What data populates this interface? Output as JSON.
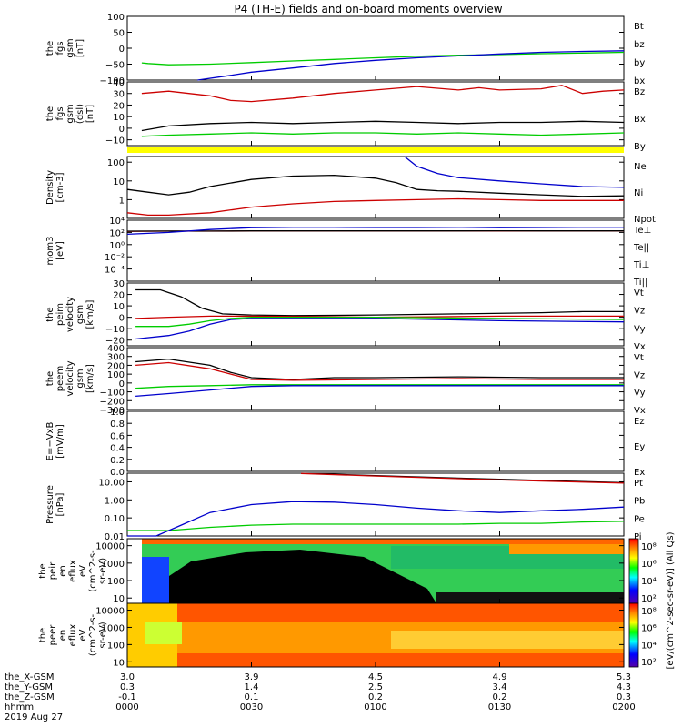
{
  "title": "P4 (TH-E) fields and on-board moments overview",
  "colors": {
    "black": "#000000",
    "red": "#cc0000",
    "green": "#00cc00",
    "blue": "#0000cc",
    "yellow": "#ffff00"
  },
  "chart_data": [
    {
      "type": "line",
      "ylabel_lines": [
        "the",
        "fgs",
        "gsm",
        "[nT]"
      ],
      "ylim": [
        -100,
        100
      ],
      "yticks": [
        -100,
        -50,
        0,
        50,
        100
      ],
      "yticklabels": [
        "−100",
        "−50",
        "0",
        "50",
        "100"
      ],
      "legend": [
        "Bt",
        "bz",
        "by",
        "bx"
      ],
      "series": [
        {
          "name": "Bt",
          "color": "black",
          "values": []
        },
        {
          "name": "bz",
          "color": "red",
          "values": []
        },
        {
          "name": "by",
          "color": "green",
          "x": [
            0.35,
            0.5,
            1,
            2,
            3,
            4,
            5,
            6,
            7,
            8,
            9,
            10,
            11,
            12
          ],
          "values": [
            -46,
            -48,
            -52,
            -50,
            -45,
            -40,
            -35,
            -30,
            -25,
            -22,
            -20,
            -17,
            -15,
            -13
          ]
        },
        {
          "name": "bx",
          "color": "blue",
          "x": [
            1.7,
            2.5,
            3,
            4,
            5,
            6,
            7,
            8,
            9,
            10,
            11,
            12
          ],
          "values": [
            -100,
            -85,
            -75,
            -62,
            -48,
            -38,
            -30,
            -24,
            -18,
            -13,
            -10,
            -8
          ]
        }
      ]
    },
    {
      "type": "line",
      "ylabel_lines": [
        "the",
        "fgs",
        "gsm",
        "(dsl)",
        "[nT]"
      ],
      "ylim": [
        -15,
        40
      ],
      "yticks": [
        -10,
        0,
        10,
        20,
        30,
        40
      ],
      "yticklabels": [
        "−10",
        "0",
        "10",
        "20",
        "30",
        "40"
      ],
      "legend": [
        "Bz",
        "Bx",
        "By"
      ],
      "series": [
        {
          "name": "Bz",
          "color": "red",
          "x": [
            0.35,
            1,
            2,
            2.5,
            3,
            4,
            5,
            6,
            7,
            8,
            8.5,
            9,
            10,
            10.5,
            11,
            11.5,
            12
          ],
          "values": [
            30,
            32,
            28,
            24,
            23,
            26,
            30,
            33,
            36,
            33,
            35,
            33,
            34,
            37,
            30,
            32,
            33
          ]
        },
        {
          "name": "Bx",
          "color": "black",
          "x": [
            0.35,
            1,
            2,
            3,
            4,
            5,
            6,
            7,
            8,
            9,
            10,
            11,
            12
          ],
          "values": [
            -2,
            2,
            4,
            5,
            4,
            5,
            6,
            5,
            4,
            5,
            5,
            6,
            5
          ]
        },
        {
          "name": "By",
          "color": "green",
          "x": [
            0.35,
            1,
            2,
            3,
            4,
            5,
            6,
            7,
            8,
            9,
            10,
            11,
            12
          ],
          "values": [
            -7,
            -6,
            -5,
            -4,
            -5,
            -4,
            -4,
            -5,
            -4,
            -5,
            -6,
            -5,
            -4
          ]
        }
      ]
    },
    {
      "type": "line",
      "yscale": "log",
      "ylabel_lines": [
        "Density",
        "[cm-3]"
      ],
      "ylim": [
        0.1,
        200
      ],
      "yticks": [
        1,
        10,
        100
      ],
      "yticklabels": [
        "1",
        "10",
        "100"
      ],
      "legend": [
        "Ne",
        "Ni",
        "Npot"
      ],
      "series": [
        {
          "name": "Ne",
          "color": "red",
          "x": [
            0,
            0.5,
            1,
            2,
            3,
            4,
            5,
            6,
            7,
            8,
            9,
            10,
            11,
            12
          ],
          "values": [
            0.2,
            0.15,
            0.15,
            0.2,
            0.4,
            0.6,
            0.8,
            0.9,
            1.0,
            1.1,
            1.0,
            0.9,
            0.9,
            0.9
          ]
        },
        {
          "name": "Ni",
          "color": "black",
          "x": [
            0,
            0.5,
            1,
            1.5,
            2,
            3,
            4,
            5,
            6,
            6.5,
            7,
            7.5,
            8,
            9,
            10,
            11,
            12
          ],
          "values": [
            3.5,
            2.5,
            1.8,
            2.5,
            5,
            12,
            18,
            20,
            14,
            8,
            3.5,
            3,
            2.8,
            2.2,
            1.8,
            1.5,
            1.6
          ]
        },
        {
          "name": "Npot",
          "color": "blue",
          "x": [
            6.7,
            7,
            7.5,
            8,
            9,
            10,
            11,
            12
          ],
          "values": [
            200,
            60,
            25,
            15,
            10,
            7,
            5,
            4.5
          ]
        }
      ]
    },
    {
      "type": "line",
      "yscale": "log",
      "ylabel_lines": [
        "mom3",
        "[eV]"
      ],
      "ylim": [
        1e-06,
        10000.0
      ],
      "yticks": [
        0.0001,
        0.01,
        1,
        100,
        10000.0
      ],
      "yticklabels": [
        "10⁻⁴",
        "10⁻²",
        "10⁰",
        "10²",
        "10⁴"
      ],
      "legend": [
        "Te⊥",
        "Te||",
        "Ti⊥",
        "Ti||"
      ],
      "series": [
        {
          "name": "Te⊥",
          "color": "red",
          "x": [
            0,
            1,
            2,
            3,
            4,
            5,
            6,
            7,
            8,
            9,
            10,
            11,
            12
          ],
          "values": [
            150,
            160,
            160,
            170,
            170,
            170,
            170,
            170,
            170,
            175,
            170,
            170,
            170
          ]
        },
        {
          "name": "Te||",
          "color": "black",
          "x": [
            0,
            1,
            2,
            3,
            4,
            5,
            6,
            7,
            8,
            9,
            10,
            11,
            12
          ],
          "values": [
            160,
            170,
            170,
            180,
            180,
            180,
            180,
            180,
            180,
            185,
            180,
            180,
            180
          ]
        },
        {
          "name": "Ti⊥",
          "color": "blue",
          "x": [
            0,
            1,
            2,
            3,
            4,
            5,
            6,
            7,
            8,
            9,
            10,
            11,
            12
          ],
          "values": [
            50,
            100,
            300,
            600,
            700,
            700,
            650,
            650,
            700,
            600,
            650,
            700,
            700
          ]
        },
        {
          "name": "Ti||",
          "color": "green",
          "values": []
        }
      ]
    },
    {
      "type": "line",
      "ylabel_lines": [
        "the",
        "peim",
        "velocity",
        "gsm",
        "[km/s]"
      ],
      "ylim": [
        -25,
        30
      ],
      "yticks": [
        -20,
        -10,
        0,
        10,
        20,
        30
      ],
      "yticklabels": [
        "−20",
        "−10",
        "0",
        "10",
        "20",
        "30"
      ],
      "legend": [
        "Vt",
        "Vz",
        "Vy",
        "Vx"
      ],
      "series": [
        {
          "name": "Vt",
          "color": "black",
          "x": [
            0.2,
            0.8,
            1.3,
            1.8,
            2.3,
            3,
            4,
            6,
            8,
            10,
            11,
            12
          ],
          "values": [
            24,
            24,
            18,
            8,
            3,
            2,
            1.5,
            2,
            3,
            4,
            5,
            5
          ]
        },
        {
          "name": "Vz",
          "color": "red",
          "x": [
            0.2,
            1,
            2,
            3,
            6,
            9,
            12
          ],
          "values": [
            -1,
            0,
            1,
            1,
            0,
            1,
            1
          ]
        },
        {
          "name": "Vy",
          "color": "green",
          "x": [
            0.2,
            1,
            1.5,
            2,
            2.5,
            3,
            6,
            9,
            12
          ],
          "values": [
            -8,
            -8,
            -6,
            -3,
            -1,
            0,
            0,
            -1,
            -2
          ]
        },
        {
          "name": "Vx",
          "color": "blue",
          "x": [
            0.2,
            1,
            1.5,
            2,
            2.5,
            3,
            6,
            9,
            12
          ],
          "values": [
            -19,
            -16,
            -12,
            -6,
            -2,
            -1,
            -1,
            -3,
            -4
          ]
        }
      ]
    },
    {
      "type": "line",
      "ylabel_lines": [
        "the",
        "peem",
        "velocity",
        "gsm",
        "[km/s]"
      ],
      "ylim": [
        -300,
        400
      ],
      "yticks": [
        -300,
        -200,
        -100,
        0,
        100,
        200,
        300,
        400
      ],
      "yticklabels": [
        "−300",
        "−200",
        "−100",
        "0",
        "100",
        "200",
        "300",
        "400"
      ],
      "legend": [
        "Vt",
        "Vz",
        "Vy",
        "Vx"
      ],
      "series": [
        {
          "name": "Vt",
          "color": "black",
          "x": [
            0.2,
            1,
            2,
            2.5,
            3,
            4,
            5,
            6,
            8,
            10,
            12
          ],
          "values": [
            240,
            270,
            200,
            120,
            60,
            40,
            60,
            60,
            70,
            60,
            60
          ]
        },
        {
          "name": "Vz",
          "color": "red",
          "x": [
            0.2,
            1,
            2,
            2.5,
            3,
            4,
            6,
            8,
            10,
            12
          ],
          "values": [
            200,
            230,
            160,
            100,
            40,
            30,
            40,
            50,
            40,
            40
          ]
        },
        {
          "name": "Vy",
          "color": "green",
          "x": [
            0.2,
            1,
            2,
            3,
            4,
            6,
            8,
            10,
            12
          ],
          "values": [
            -60,
            -40,
            -30,
            -20,
            -20,
            -20,
            -20,
            -20,
            -20
          ]
        },
        {
          "name": "Vx",
          "color": "blue",
          "x": [
            0.2,
            1,
            2,
            3,
            4,
            6,
            8,
            10,
            12
          ],
          "values": [
            -150,
            -120,
            -80,
            -40,
            -30,
            -30,
            -30,
            -30,
            -30
          ]
        }
      ]
    },
    {
      "type": "line",
      "ylabel_lines": [
        "E=−VxB",
        "[mV/m]"
      ],
      "ylim": [
        0,
        1
      ],
      "yticks": [
        0,
        0.2,
        0.4,
        0.6,
        0.8,
        1.0
      ],
      "yticklabels": [
        "0.0",
        "0.2",
        "0.4",
        "0.6",
        "0.8",
        "1.0"
      ],
      "legend": [
        "Ez",
        "Ey",
        "Ex"
      ],
      "series": [
        {
          "name": "Ez",
          "color": "red",
          "values": []
        },
        {
          "name": "Ey",
          "color": "green",
          "values": []
        },
        {
          "name": "Ex",
          "color": "blue",
          "values": []
        }
      ]
    },
    {
      "type": "line",
      "yscale": "log",
      "ylabel_lines": [
        "Pressure",
        "[nPa]"
      ],
      "ylim": [
        0.01,
        30
      ],
      "yticks": [
        0.01,
        0.1,
        1,
        10
      ],
      "yticklabels": [
        "0.01",
        "0.10",
        "1.00",
        "10.00"
      ],
      "legend": [
        "Pt",
        "Pb",
        "Pe",
        "Pi"
      ],
      "series": [
        {
          "name": "Pt",
          "color": "black",
          "x": [
            4.2,
            6,
            8,
            10,
            12
          ],
          "values": [
            30,
            22,
            16,
            12,
            9
          ]
        },
        {
          "name": "Pb",
          "color": "red",
          "x": [
            4.2,
            6,
            8,
            10,
            12
          ],
          "values": [
            29,
            21,
            15,
            11,
            8.5
          ]
        },
        {
          "name": "Pe",
          "color": "green",
          "x": [
            0,
            1,
            2,
            3,
            4,
            5,
            6,
            7,
            8,
            9,
            10,
            11,
            12
          ],
          "values": [
            0.02,
            0.02,
            0.03,
            0.04,
            0.045,
            0.045,
            0.045,
            0.045,
            0.045,
            0.05,
            0.05,
            0.06,
            0.065
          ]
        },
        {
          "name": "Pi",
          "color": "blue",
          "x": [
            0,
            0.7,
            1.3,
            2,
            3,
            4,
            5,
            6,
            7,
            8,
            9,
            10,
            11,
            12
          ],
          "values": [
            0.005,
            0.01,
            0.04,
            0.2,
            0.55,
            0.8,
            0.75,
            0.55,
            0.35,
            0.25,
            0.2,
            0.25,
            0.3,
            0.4
          ]
        }
      ]
    },
    {
      "type": "heatmap",
      "ylabel_lines": [
        "the",
        "peir",
        "en",
        "eflux",
        "eV",
        "(cm^2-s-",
        "sr-eV)"
      ],
      "yscale": "log",
      "ylim": [
        5,
        25000
      ],
      "yticks": [
        10,
        100,
        1000,
        10000
      ],
      "yticklabels": [
        "10",
        "100",
        "1000",
        "10000"
      ],
      "colorbar_ticks": [
        "10⁸",
        "10⁶",
        "10⁴",
        "10²"
      ]
    },
    {
      "type": "heatmap",
      "ylabel_lines": [
        "the",
        "peer",
        "en",
        "eflux",
        "eV",
        "(cm^2-s-",
        "sr-eV)"
      ],
      "yscale": "log",
      "ylim": [
        5,
        25000
      ],
      "yticks": [
        10,
        100,
        1000,
        10000
      ],
      "yticklabels": [
        "10",
        "100",
        "1000",
        "10000"
      ],
      "colorbar_ticks": [
        "10⁸",
        "10⁶",
        "10⁴",
        "10²"
      ]
    }
  ],
  "colorbar_title": "[eV/(cm^2-sec-sr-eV)] (All Qs)",
  "xaxis": {
    "x_minutes": [
      0,
      30,
      60,
      90,
      120
    ],
    "row_labels": [
      "the_X-GSM",
      "the_Y-GSM",
      "the_Z-GSM",
      "hhmm"
    ],
    "columns": [
      [
        "3.0",
        "0.3",
        "-0.1",
        "0000"
      ],
      [
        "3.9",
        "1.4",
        "0.1",
        "0030"
      ],
      [
        "4.5",
        "2.5",
        "0.2",
        "0100"
      ],
      [
        "4.9",
        "3.4",
        "0.2",
        "0130"
      ],
      [
        "5.3",
        "4.3",
        "0.3",
        "0200"
      ]
    ],
    "date": "2019 Aug 27"
  }
}
